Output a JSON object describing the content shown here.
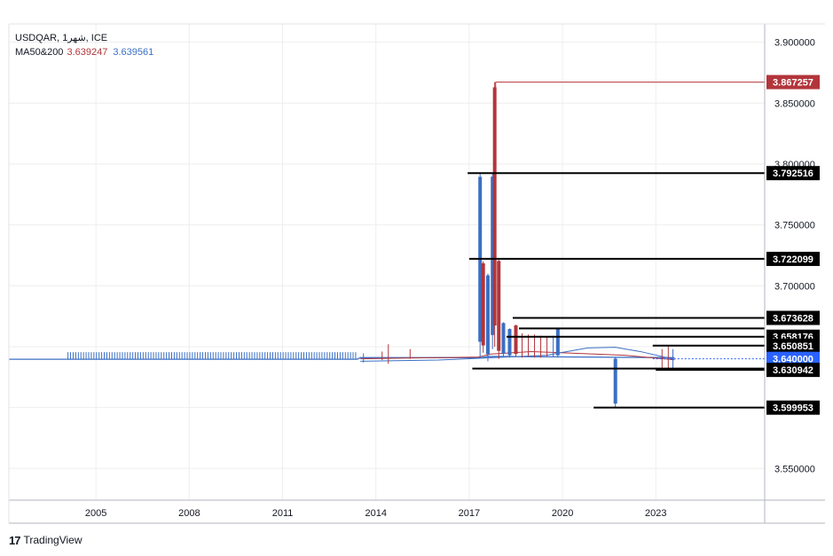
{
  "legend": {
    "symbol_line": "USDQAR, شهر1, ICE",
    "ma_label": "MA50&200",
    "ma50_value": "3.639247",
    "ma200_value": "3.639561"
  },
  "branding": {
    "logo_glyph": "17",
    "name": "TradingView"
  },
  "colors": {
    "up": "#3b6fc4",
    "down": "#b2353b",
    "ma50": "#b2353b",
    "ma200": "#3b6fc4",
    "grid": "#eeeeee",
    "level": "#000000",
    "current": "#2962ff"
  },
  "chart_data": {
    "type": "line",
    "title": "",
    "xlabel": "",
    "ylabel": "",
    "ylim": [
      3.524,
      3.915
    ],
    "xlim": [
      2002.2,
      2026.5
    ],
    "y_ticks": [
      "3.900000",
      "3.850000",
      "3.800000",
      "3.750000",
      "3.700000",
      "3.650000",
      "3.600000",
      "3.550000"
    ],
    "x_ticks": [
      {
        "label": "2005",
        "x": 2005.0
      },
      {
        "label": "2008",
        "x": 2008.0
      },
      {
        "label": "2011",
        "x": 2011.0
      },
      {
        "label": "2014",
        "x": 2014.0
      },
      {
        "label": "2017",
        "x": 2017.0
      },
      {
        "label": "2020",
        "x": 2020.0
      },
      {
        "label": "2023",
        "x": 2023.0
      }
    ],
    "grid": true,
    "baseline": [
      {
        "x": 2002.2,
        "y": 3.6397
      },
      {
        "x": 2013.4,
        "y": 3.6397
      },
      {
        "x": 2013.5,
        "y": 3.641
      },
      {
        "x": 2017.4,
        "y": 3.641
      },
      {
        "x": 2017.6,
        "y": 3.642
      },
      {
        "x": 2023.6,
        "y": 3.641
      }
    ],
    "early_wick_range": {
      "start": 2004.1,
      "end": 2013.4,
      "low": 3.64,
      "high": 3.6455
    },
    "series": [
      {
        "name": "MA50",
        "points": [
          {
            "x": 2013.5,
            "y": 3.64
          },
          {
            "x": 2016.0,
            "y": 3.641
          },
          {
            "x": 2017.3,
            "y": 3.6415
          },
          {
            "x": 2017.7,
            "y": 3.644
          },
          {
            "x": 2019.0,
            "y": 3.646
          },
          {
            "x": 2020.5,
            "y": 3.6445
          },
          {
            "x": 2022.0,
            "y": 3.643
          },
          {
            "x": 2023.6,
            "y": 3.6392
          }
        ]
      },
      {
        "name": "MA200",
        "points": [
          {
            "x": 2013.5,
            "y": 3.638
          },
          {
            "x": 2016.0,
            "y": 3.639
          },
          {
            "x": 2017.8,
            "y": 3.641
          },
          {
            "x": 2019.5,
            "y": 3.643
          },
          {
            "x": 2020.8,
            "y": 3.649
          },
          {
            "x": 2021.7,
            "y": 3.6495
          },
          {
            "x": 2022.5,
            "y": 3.646
          },
          {
            "x": 2023.6,
            "y": 3.6396
          }
        ]
      }
    ],
    "spikes": [
      {
        "x": 2013.6,
        "low": 3.637,
        "high": 3.6445,
        "dir": "up"
      },
      {
        "x": 2014.2,
        "low": 3.639,
        "high": 3.646,
        "dir": "down"
      },
      {
        "x": 2014.4,
        "low": 3.636,
        "high": 3.652,
        "dir": "down"
      },
      {
        "x": 2015.1,
        "low": 3.64,
        "high": 3.648,
        "dir": "down"
      },
      {
        "x": 2017.35,
        "low": 3.642,
        "high": 3.7925,
        "dir": "up"
      },
      {
        "x": 2017.45,
        "low": 3.645,
        "high": 3.72,
        "dir": "down"
      },
      {
        "x": 2017.6,
        "low": 3.638,
        "high": 3.71,
        "dir": "up"
      },
      {
        "x": 2017.75,
        "low": 3.648,
        "high": 3.7925,
        "dir": "up"
      },
      {
        "x": 2017.82,
        "low": 3.65,
        "high": 3.8673,
        "dir": "down"
      },
      {
        "x": 2017.95,
        "low": 3.64,
        "high": 3.722,
        "dir": "down"
      },
      {
        "x": 2018.1,
        "low": 3.642,
        "high": 3.67,
        "dir": "up"
      },
      {
        "x": 2018.3,
        "low": 3.641,
        "high": 3.665,
        "dir": "up"
      },
      {
        "x": 2018.5,
        "low": 3.642,
        "high": 3.668,
        "dir": "down"
      },
      {
        "x": 2018.7,
        "low": 3.641,
        "high": 3.661,
        "dir": "down"
      },
      {
        "x": 2018.9,
        "low": 3.642,
        "high": 3.66,
        "dir": "down"
      },
      {
        "x": 2019.1,
        "low": 3.641,
        "high": 3.66,
        "dir": "down"
      },
      {
        "x": 2019.3,
        "low": 3.641,
        "high": 3.659,
        "dir": "down"
      },
      {
        "x": 2019.5,
        "low": 3.642,
        "high": 3.658,
        "dir": "down"
      },
      {
        "x": 2019.7,
        "low": 3.642,
        "high": 3.659,
        "dir": "up"
      },
      {
        "x": 2019.85,
        "low": 3.641,
        "high": 3.665,
        "dir": "up"
      },
      {
        "x": 2021.7,
        "low": 3.6,
        "high": 3.641,
        "dir": "up"
      },
      {
        "x": 2023.2,
        "low": 3.632,
        "high": 3.648,
        "dir": "down"
      },
      {
        "x": 2023.4,
        "low": 3.631,
        "high": 3.6509,
        "dir": "down"
      },
      {
        "x": 2023.55,
        "low": 3.632,
        "high": 3.648,
        "dir": "up"
      }
    ],
    "levels": [
      {
        "value": 3.867257,
        "label": "3.867257",
        "x_from": 2017.85,
        "color": "#b2353b"
      },
      {
        "value": 3.792516,
        "label": "3.792516",
        "x_from": 2016.95,
        "color": "#000000"
      },
      {
        "value": 3.722099,
        "label": "3.722099",
        "x_from": 2017.0,
        "color": "#000000"
      },
      {
        "value": 3.673628,
        "label": "3.673628",
        "x_from": 2018.4,
        "color": "#000000"
      },
      {
        "value": 3.665,
        "label": "",
        "x_from": 2018.6,
        "color": "#000000"
      },
      {
        "value": 3.658176,
        "label": "3.658176",
        "x_from": 2018.2,
        "color": "#000000"
      },
      {
        "value": 3.650851,
        "label": "3.650851",
        "x_from": 2022.9,
        "color": "#000000"
      },
      {
        "value": 3.64,
        "label": "3.640000",
        "x_from": 2022.9,
        "color": "#2962ff"
      },
      {
        "value": 3.632,
        "label": "",
        "x_from": 2017.1,
        "color": "#000000"
      },
      {
        "value": 3.630942,
        "label": "3.630942",
        "x_from": 2023.0,
        "color": "#000000"
      },
      {
        "value": 3.599953,
        "label": "3.599953",
        "x_from": 2021.0,
        "color": "#000000"
      }
    ]
  }
}
